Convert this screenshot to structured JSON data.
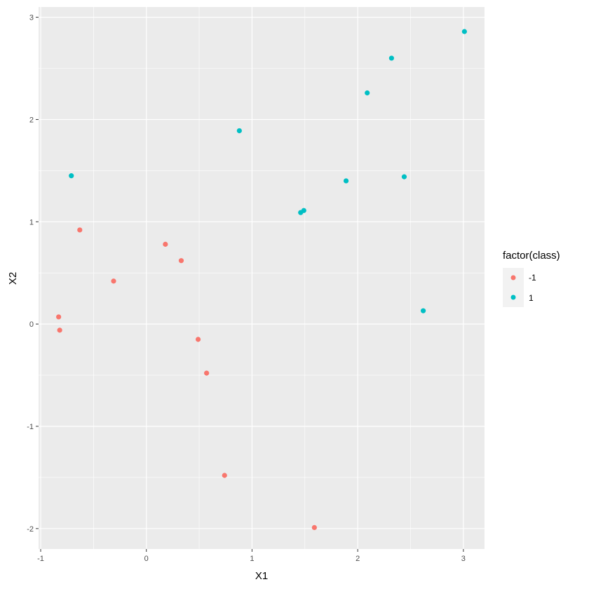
{
  "chart_data": {
    "type": "scatter",
    "xlabel": "X1",
    "ylabel": "X2",
    "xlim": [
      -1.02,
      3.2
    ],
    "ylim": [
      -2.2,
      3.1
    ],
    "x_ticks": [
      -1,
      0,
      1,
      2,
      3
    ],
    "y_ticks": [
      -2,
      -1,
      0,
      1,
      2,
      3
    ],
    "x_tick_labels": [
      "-1",
      "0",
      "1",
      "2",
      "3"
    ],
    "y_tick_labels": [
      "-2",
      "-1",
      "0",
      "1",
      "2",
      "3"
    ],
    "grid": true,
    "panel_background": "#EBEBEB",
    "grid_color": "#FFFFFF",
    "legend": {
      "title": "factor(class)",
      "position": "right",
      "entries": [
        {
          "label": "-1",
          "color": "#F8766D"
        },
        {
          "label": "1",
          "color": "#00BFC4"
        }
      ]
    },
    "series": [
      {
        "name": "-1",
        "color": "#F8766D",
        "points": [
          {
            "x": -0.83,
            "y": 0.07
          },
          {
            "x": -0.82,
            "y": -0.06
          },
          {
            "x": -0.63,
            "y": 0.92
          },
          {
            "x": -0.31,
            "y": 0.42
          },
          {
            "x": 0.18,
            "y": 0.78
          },
          {
            "x": 0.33,
            "y": 0.62
          },
          {
            "x": 0.49,
            "y": -0.15
          },
          {
            "x": 0.57,
            "y": -0.48
          },
          {
            "x": 0.74,
            "y": -1.48
          },
          {
            "x": 1.59,
            "y": -1.99
          }
        ]
      },
      {
        "name": "1",
        "color": "#00BFC4",
        "points": [
          {
            "x": -0.71,
            "y": 1.45
          },
          {
            "x": 0.88,
            "y": 1.89
          },
          {
            "x": 1.46,
            "y": 1.09
          },
          {
            "x": 1.49,
            "y": 1.11
          },
          {
            "x": 1.89,
            "y": 1.4
          },
          {
            "x": 2.09,
            "y": 2.26
          },
          {
            "x": 2.32,
            "y": 2.6
          },
          {
            "x": 2.44,
            "y": 1.44
          },
          {
            "x": 2.62,
            "y": 0.13
          },
          {
            "x": 3.01,
            "y": 2.86
          }
        ]
      }
    ]
  }
}
